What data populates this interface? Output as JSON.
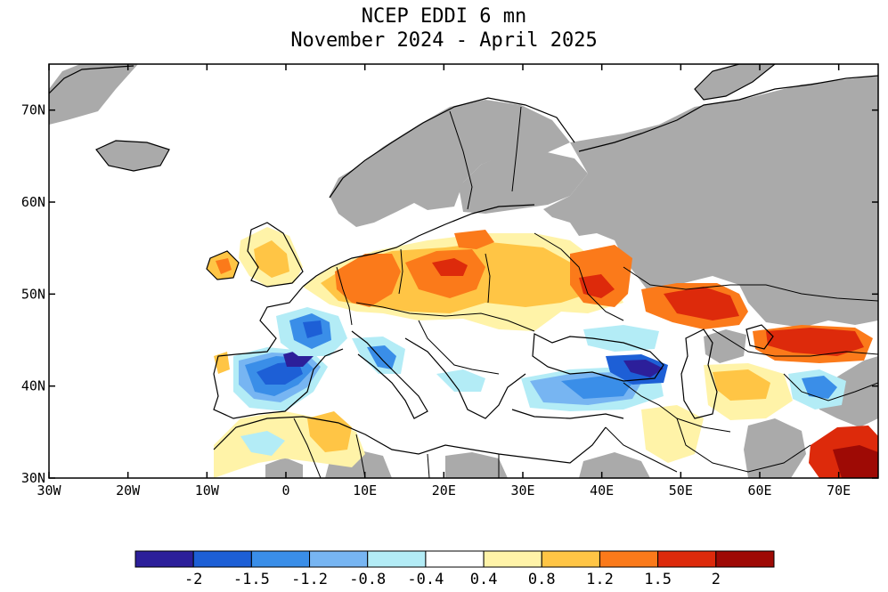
{
  "title": {
    "line1": "NCEP EDDI 6 mn",
    "line2": "November 2024 - April 2025"
  },
  "map": {
    "extent": {
      "lon": [
        -30,
        75
      ],
      "lat": [
        30,
        75
      ]
    },
    "lat_ticks": [
      {
        "value": 70,
        "label": "70N"
      },
      {
        "value": 60,
        "label": "60N"
      },
      {
        "value": 50,
        "label": "50N"
      },
      {
        "value": 40,
        "label": "40N"
      },
      {
        "value": 30,
        "label": "30N"
      }
    ],
    "lon_ticks": [
      {
        "value": -30,
        "label": "30W"
      },
      {
        "value": -20,
        "label": "20W"
      },
      {
        "value": -10,
        "label": "10W"
      },
      {
        "value": 0,
        "label": "0"
      },
      {
        "value": 10,
        "label": "10E"
      },
      {
        "value": 20,
        "label": "20E"
      },
      {
        "value": 30,
        "label": "30E"
      },
      {
        "value": 40,
        "label": "40E"
      },
      {
        "value": 50,
        "label": "50E"
      },
      {
        "value": 60,
        "label": "60E"
      },
      {
        "value": 70,
        "label": "70E"
      }
    ],
    "nodata_color": "#aaaaaa"
  },
  "colorbar": {
    "colors": [
      "#2c1f9a",
      "#1d5fd6",
      "#3a8ee8",
      "#77b5f2",
      "#b3ecf6",
      "#ffffff",
      "#fff3a8",
      "#ffc545",
      "#fb7a1a",
      "#dd2a0b",
      "#9e0a05"
    ],
    "labels": [
      "-2",
      "-1.5",
      "-1.2",
      "-0.8",
      "-0.4",
      "0.4",
      "0.8",
      "1.2",
      "1.5",
      "2"
    ]
  }
}
